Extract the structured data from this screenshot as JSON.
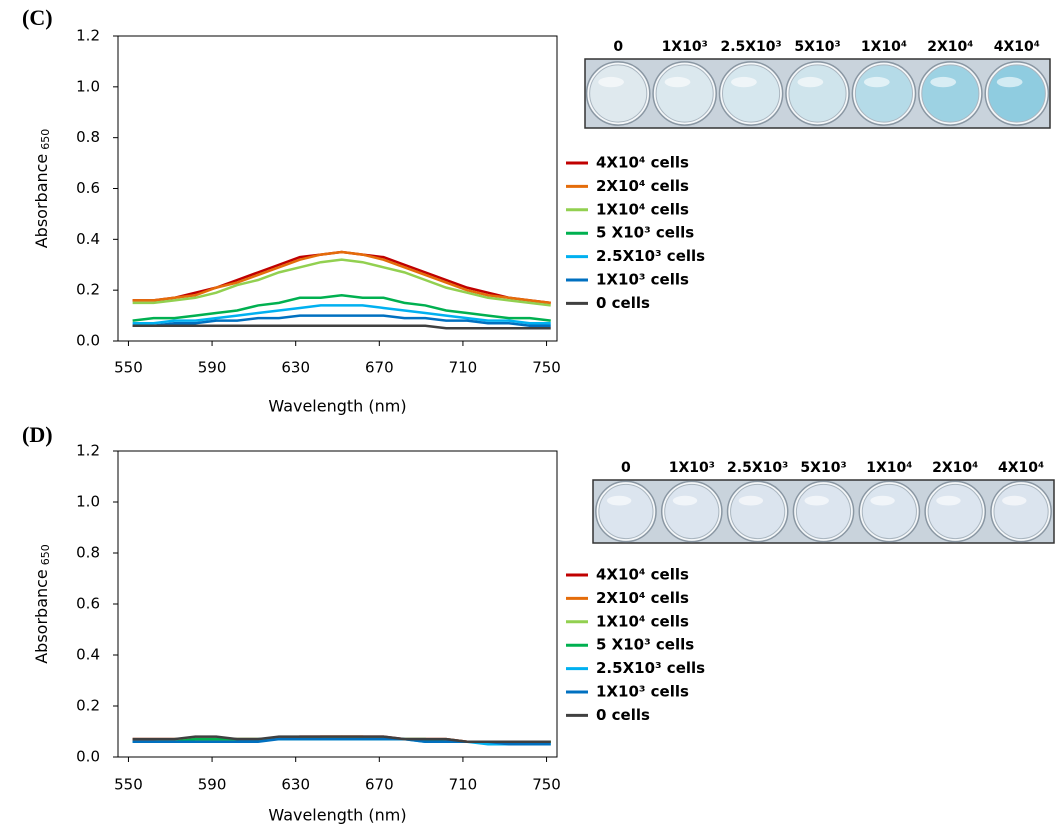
{
  "chart_data": [
    {
      "type": "line",
      "panel": "(C)",
      "xlabel": "Wavelength (nm)",
      "ylabel": {
        "text": "Absorbance",
        "sub": "650"
      },
      "x": [
        552,
        562,
        572,
        582,
        592,
        602,
        612,
        622,
        632,
        642,
        652,
        662,
        672,
        682,
        692,
        702,
        712,
        722,
        732,
        742,
        752
      ],
      "xlim": [
        545,
        755
      ],
      "xticks": [
        550,
        590,
        630,
        670,
        710,
        750
      ],
      "ylim": [
        0,
        1.2
      ],
      "yticks": [
        {
          "value": 0,
          "label": "0.0"
        },
        0.2,
        0.4,
        0.6,
        0.8,
        {
          "value": 1,
          "label": "1.0"
        },
        1.2
      ],
      "grid": false,
      "plate_labels": [
        "0",
        "1X10³",
        "2.5X10³",
        "5X10³",
        "1X10⁴",
        "2X10⁴",
        "4X10⁴"
      ],
      "series": [
        {
          "name": "4X10⁴ cells",
          "color": "#c00000",
          "values": [
            0.16,
            0.16,
            0.17,
            0.19,
            0.21,
            0.24,
            0.27,
            0.3,
            0.33,
            0.34,
            0.35,
            0.34,
            0.33,
            0.3,
            0.27,
            0.24,
            0.21,
            0.19,
            0.17,
            0.16,
            0.15
          ]
        },
        {
          "name": "2X10⁴ cells",
          "color": "#e46c0a",
          "values": [
            0.16,
            0.16,
            0.17,
            0.18,
            0.21,
            0.23,
            0.26,
            0.29,
            0.32,
            0.34,
            0.35,
            0.34,
            0.32,
            0.29,
            0.26,
            0.23,
            0.2,
            0.18,
            0.17,
            0.16,
            0.15
          ]
        },
        {
          "name": "1X10⁴ cells",
          "color": "#92d050",
          "values": [
            0.15,
            0.15,
            0.16,
            0.17,
            0.19,
            0.22,
            0.24,
            0.27,
            0.29,
            0.31,
            0.32,
            0.31,
            0.29,
            0.27,
            0.24,
            0.21,
            0.19,
            0.17,
            0.16,
            0.15,
            0.14
          ]
        },
        {
          "name": "5 X10³ cells",
          "color": "#00b050",
          "values": [
            0.08,
            0.09,
            0.09,
            0.1,
            0.11,
            0.12,
            0.14,
            0.15,
            0.17,
            0.17,
            0.18,
            0.17,
            0.17,
            0.15,
            0.14,
            0.12,
            0.11,
            0.1,
            0.09,
            0.09,
            0.08
          ]
        },
        {
          "name": "2.5X10³ cells",
          "color": "#00b0f0",
          "values": [
            0.07,
            0.07,
            0.08,
            0.08,
            0.09,
            0.1,
            0.11,
            0.12,
            0.13,
            0.14,
            0.14,
            0.14,
            0.13,
            0.12,
            0.11,
            0.1,
            0.09,
            0.08,
            0.08,
            0.07,
            0.07
          ]
        },
        {
          "name": "1X10³ cells",
          "color": "#0070c0",
          "values": [
            0.06,
            0.06,
            0.07,
            0.07,
            0.08,
            0.08,
            0.09,
            0.09,
            0.1,
            0.1,
            0.1,
            0.1,
            0.1,
            0.09,
            0.09,
            0.08,
            0.08,
            0.07,
            0.07,
            0.06,
            0.06
          ]
        },
        {
          "name": "0 cells",
          "color": "#404040",
          "values": [
            0.06,
            0.06,
            0.06,
            0.06,
            0.06,
            0.06,
            0.06,
            0.06,
            0.06,
            0.06,
            0.06,
            0.06,
            0.06,
            0.06,
            0.06,
            0.05,
            0.05,
            0.05,
            0.05,
            0.05,
            0.05
          ]
        }
      ]
    },
    {
      "type": "line",
      "panel": "(D)",
      "xlabel": "Wavelength (nm)",
      "ylabel": {
        "text": "Absorbance",
        "sub": "650"
      },
      "x": [
        552,
        562,
        572,
        582,
        592,
        602,
        612,
        622,
        632,
        642,
        652,
        662,
        672,
        682,
        692,
        702,
        712,
        722,
        732,
        742,
        752
      ],
      "xlim": [
        545,
        755
      ],
      "xticks": [
        550,
        590,
        630,
        670,
        710,
        750
      ],
      "ylim": [
        0,
        1.2
      ],
      "yticks": [
        {
          "value": 0,
          "label": "0.0"
        },
        0.2,
        0.4,
        0.6,
        0.8,
        {
          "value": 1,
          "label": "1.0"
        },
        1.2
      ],
      "grid": false,
      "plate_labels": [
        "0",
        "1X10³",
        "2.5X10³",
        "5X10³",
        "1X10⁴",
        "2X10⁴",
        "4X10⁴"
      ],
      "series": [
        {
          "name": "4X10⁴ cells",
          "color": "#c00000",
          "values": [
            0.07,
            0.07,
            0.07,
            0.07,
            0.07,
            0.07,
            0.07,
            0.07,
            0.08,
            0.08,
            0.08,
            0.08,
            0.08,
            0.07,
            0.07,
            0.07,
            0.06,
            0.06,
            0.06,
            0.06,
            0.06
          ]
        },
        {
          "name": "2X10⁴ cells",
          "color": "#e46c0a",
          "values": [
            0.07,
            0.07,
            0.07,
            0.07,
            0.07,
            0.07,
            0.07,
            0.07,
            0.07,
            0.08,
            0.08,
            0.08,
            0.07,
            0.07,
            0.07,
            0.07,
            0.06,
            0.06,
            0.06,
            0.06,
            0.06
          ]
        },
        {
          "name": "1X10⁴ cells",
          "color": "#92d050",
          "values": [
            0.06,
            0.06,
            0.07,
            0.07,
            0.07,
            0.07,
            0.07,
            0.07,
            0.07,
            0.07,
            0.08,
            0.07,
            0.07,
            0.07,
            0.07,
            0.06,
            0.06,
            0.06,
            0.06,
            0.06,
            0.06
          ]
        },
        {
          "name": "5 X10³ cells",
          "color": "#00b050",
          "values": [
            0.06,
            0.06,
            0.06,
            0.07,
            0.07,
            0.07,
            0.07,
            0.07,
            0.07,
            0.07,
            0.07,
            0.07,
            0.07,
            0.07,
            0.07,
            0.06,
            0.06,
            0.06,
            0.06,
            0.06,
            0.06
          ]
        },
        {
          "name": "2.5X10³ cells",
          "color": "#00b0f0",
          "values": [
            0.06,
            0.06,
            0.06,
            0.06,
            0.06,
            0.06,
            0.07,
            0.07,
            0.07,
            0.07,
            0.07,
            0.07,
            0.07,
            0.07,
            0.06,
            0.06,
            0.06,
            0.05,
            0.05,
            0.05,
            0.05
          ]
        },
        {
          "name": "1X10³ cells",
          "color": "#0070c0",
          "values": [
            0.06,
            0.06,
            0.06,
            0.06,
            0.06,
            0.06,
            0.06,
            0.07,
            0.07,
            0.07,
            0.07,
            0.07,
            0.07,
            0.07,
            0.06,
            0.06,
            0.06,
            0.06,
            0.05,
            0.05,
            0.05
          ]
        },
        {
          "name": "0 cells",
          "color": "#404040",
          "values": [
            0.07,
            0.07,
            0.07,
            0.08,
            0.08,
            0.07,
            0.07,
            0.08,
            0.08,
            0.08,
            0.08,
            0.08,
            0.08,
            0.07,
            0.07,
            0.07,
            0.06,
            0.06,
            0.06,
            0.06,
            0.06
          ]
        }
      ]
    }
  ]
}
